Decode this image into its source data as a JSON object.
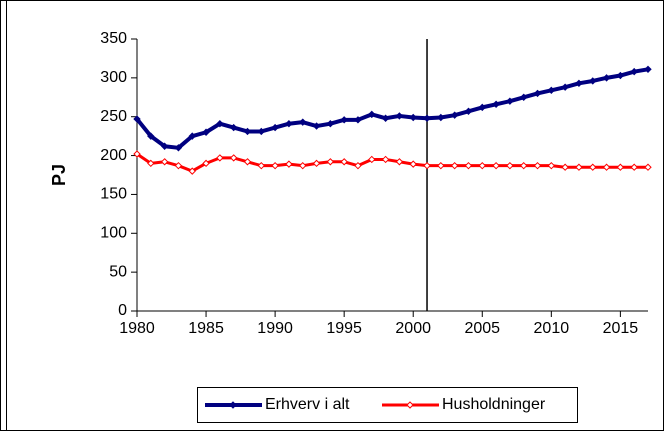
{
  "chart_data": {
    "type": "line",
    "y_label": "PJ",
    "x": [
      1980,
      1981,
      1982,
      1983,
      1984,
      1985,
      1986,
      1987,
      1988,
      1989,
      1990,
      1991,
      1992,
      1993,
      1994,
      1995,
      1996,
      1997,
      1998,
      1999,
      2000,
      2001,
      2002,
      2003,
      2004,
      2005,
      2006,
      2007,
      2008,
      2009,
      2010,
      2011,
      2012,
      2013,
      2014,
      2015,
      2016,
      2017
    ],
    "series": [
      {
        "name": "Erhverv i alt",
        "color": "#000080",
        "values": [
          247,
          225,
          212,
          210,
          225,
          230,
          241,
          236,
          231,
          231,
          236,
          241,
          243,
          238,
          241,
          246,
          246,
          253,
          248,
          251,
          249,
          248,
          249,
          252,
          257,
          262,
          266,
          270,
          275,
          280,
          284,
          288,
          293,
          296,
          300,
          303,
          308,
          311
        ]
      },
      {
        "name": "Husholdninger",
        "color": "#ff0000",
        "values": [
          202,
          190,
          192,
          187,
          180,
          190,
          197,
          197,
          192,
          187,
          187,
          189,
          187,
          190,
          192,
          192,
          187,
          195,
          195,
          192,
          189,
          187,
          187,
          187,
          187,
          187,
          187,
          187,
          187,
          187,
          187,
          185,
          185,
          185,
          185,
          185,
          185,
          185
        ]
      }
    ],
    "xlim": [
      1980,
      2017
    ],
    "xticks": [
      1980,
      1985,
      1990,
      1995,
      2000,
      2005,
      2010,
      2015
    ],
    "ylim": [
      0,
      350
    ],
    "yticks": [
      0,
      50,
      100,
      150,
      200,
      250,
      300,
      350
    ],
    "vline_x": 2001,
    "legend": "bottom"
  }
}
